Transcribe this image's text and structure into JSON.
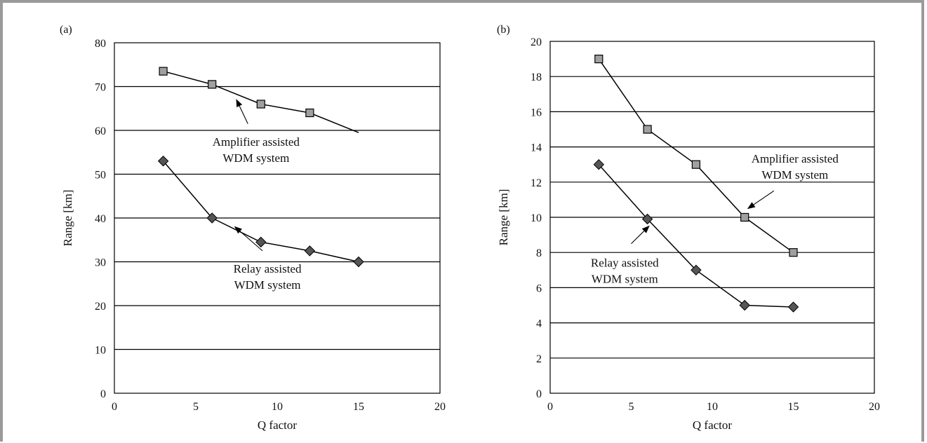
{
  "frame_color": "#9a9a9a",
  "chart_data": [
    {
      "panel_label": "(a)",
      "type": "line",
      "xlabel": "Q factor",
      "ylabel": "Range [km]",
      "xlim": [
        0,
        20
      ],
      "ylim": [
        0,
        80
      ],
      "xticks": [
        0,
        5,
        10,
        15,
        20
      ],
      "yticks": [
        0,
        10,
        20,
        30,
        40,
        50,
        60,
        70,
        80
      ],
      "grid": "horizontal",
      "series": [
        {
          "marker": "square",
          "color": "#a0a0a0",
          "points": [
            [
              3,
              73.5
            ],
            [
              6,
              70.5
            ],
            [
              9,
              66
            ],
            [
              12,
              64
            ]
          ],
          "line_extends_to": [
            15,
            59.5
          ]
        },
        {
          "marker": "diamond",
          "color": "#555555",
          "points": [
            [
              3,
              53
            ],
            [
              6,
              40
            ],
            [
              9,
              34.5
            ],
            [
              12,
              32.5
            ],
            [
              15,
              30
            ]
          ]
        }
      ],
      "annotations": [
        {
          "line1": "Amplifier assisted",
          "line2": "WDM system",
          "text_at": [
            8.7,
            56.5
          ],
          "arrow_from": [
            8.2,
            61.5
          ],
          "arrow_to": [
            7.5,
            67
          ]
        },
        {
          "line1": "Relay assisted",
          "line2": "WDM system",
          "text_at": [
            9.4,
            27.5
          ],
          "arrow_from": [
            9.1,
            32.5
          ],
          "arrow_to": [
            7.4,
            38
          ]
        }
      ]
    },
    {
      "panel_label": "(b)",
      "type": "line",
      "xlabel": "Q factor",
      "ylabel": "Range [km]",
      "xlim": [
        0,
        20
      ],
      "ylim": [
        0,
        20
      ],
      "xticks": [
        0,
        5,
        10,
        15,
        20
      ],
      "yticks": [
        0,
        2,
        4,
        6,
        8,
        10,
        12,
        14,
        16,
        18,
        20
      ],
      "grid": "horizontal",
      "series": [
        {
          "marker": "square",
          "color": "#a0a0a0",
          "points": [
            [
              3,
              19
            ],
            [
              6,
              15
            ],
            [
              9,
              13
            ],
            [
              12,
              10
            ],
            [
              15,
              8
            ]
          ]
        },
        {
          "marker": "diamond",
          "color": "#555555",
          "points": [
            [
              3,
              13
            ],
            [
              6,
              9.9
            ],
            [
              9,
              7
            ],
            [
              12,
              5
            ],
            [
              15,
              4.9
            ]
          ]
        }
      ],
      "annotations": [
        {
          "line1": "Amplifier assisted",
          "line2": "WDM system",
          "text_at": [
            15.1,
            13.1
          ],
          "arrow_from": [
            13.8,
            11.5
          ],
          "arrow_to": [
            12.2,
            10.5
          ]
        },
        {
          "line1": "Relay assisted",
          "line2": "WDM system",
          "text_at": [
            4.6,
            7.2
          ],
          "arrow_from": [
            5.0,
            8.5
          ],
          "arrow_to": [
            6.1,
            9.5
          ]
        }
      ]
    }
  ]
}
